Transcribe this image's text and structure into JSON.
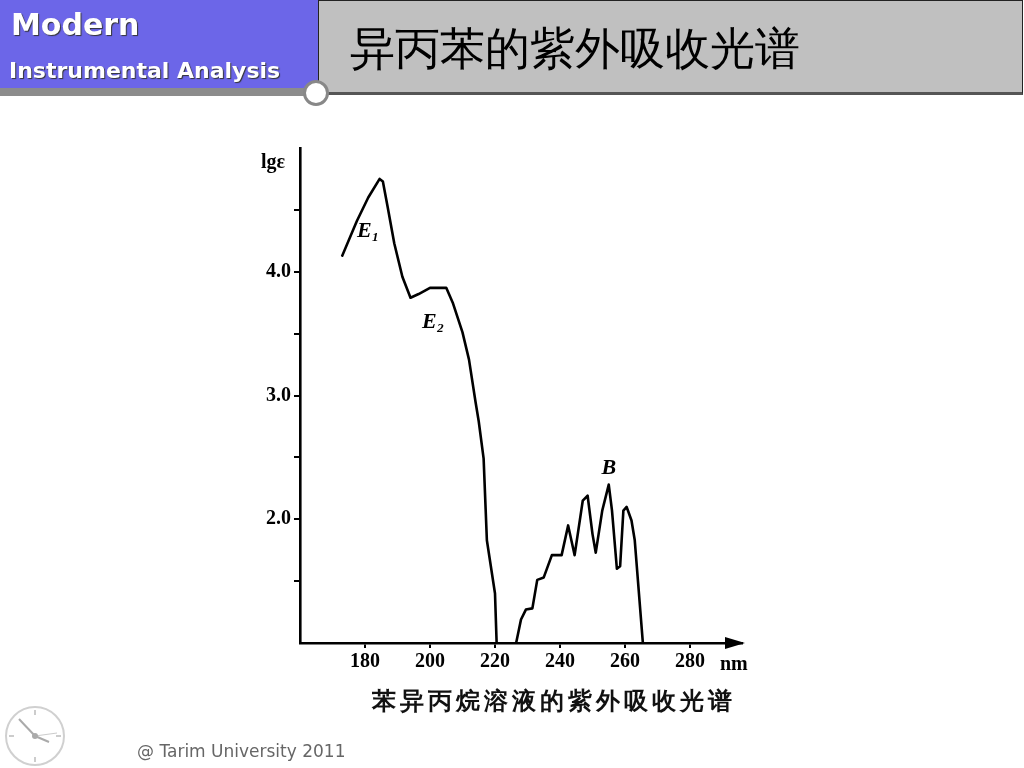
{
  "chart_data": {
    "type": "line",
    "title": "异丙苯的紫外吸收光谱",
    "xlabel": "nm",
    "ylabel": "lgε",
    "annotations": [
      "Modern",
      "Instrumental Analysis",
      "苯异丙烷溶液的紫外吸收光谱",
      "@ Tarim University 2011",
      {
        "text": "E₁",
        "x": 181,
        "y": 4.6
      },
      {
        "text": "E₂",
        "x": 201,
        "y": 3.87
      },
      {
        "text": "B",
        "x": 255,
        "y": 2.28
      }
    ],
    "x": [
      173,
      177.5,
      181,
      184.5,
      185.5,
      187,
      189,
      191.5,
      194,
      196.5,
      200,
      201,
      203,
      205,
      207,
      210,
      212,
      214,
      215,
      216.5,
      217.5,
      220,
      220.5,
      223.5,
      226.5,
      228,
      229.5,
      231.5,
      233,
      235,
      237.5,
      240.5,
      242.5,
      244,
      244.5,
      247,
      248.5,
      250,
      251,
      253,
      255,
      256,
      257.5,
      258.5,
      259.5,
      260.5,
      262,
      263,
      265.5
    ],
    "series": [
      {
        "color": "#000000",
        "values": [
          4.13,
          4.41,
          4.6,
          4.75,
          4.73,
          4.52,
          4.23,
          3.96,
          3.79,
          3.82,
          3.87,
          3.87,
          3.87,
          3.87,
          3.75,
          3.51,
          3.29,
          2.95,
          2.79,
          2.49,
          1.83,
          1.4,
          1,
          null,
          1,
          1.19,
          1.27,
          1.28,
          1.51,
          1.53,
          1.71,
          1.71,
          1.95,
          1.77,
          1.71,
          2.15,
          2.19,
          1.88,
          1.73,
          2.07,
          2.28,
          2.07,
          1.6,
          1.62,
          2.07,
          2.1,
          1.99,
          1.83,
          1
        ]
      }
    ],
    "xlim": [
      160,
      296
    ],
    "ylim": [
      1,
      5
    ],
    "xticks": [
      180,
      200,
      220,
      240,
      260,
      280
    ],
    "yticks": [
      {
        "value": 1.5,
        "label": null
      },
      {
        "value": 2,
        "label": "2.0"
      },
      {
        "value": 2.5,
        "label": null
      },
      {
        "value": 3,
        "label": "3.0"
      },
      {
        "value": 3.5,
        "label": null
      },
      {
        "value": 4,
        "label": "4.0"
      },
      {
        "value": 4.5,
        "label": null
      }
    ],
    "grid": false,
    "legend": false,
    "marker": "none",
    "line_style": "solid"
  }
}
